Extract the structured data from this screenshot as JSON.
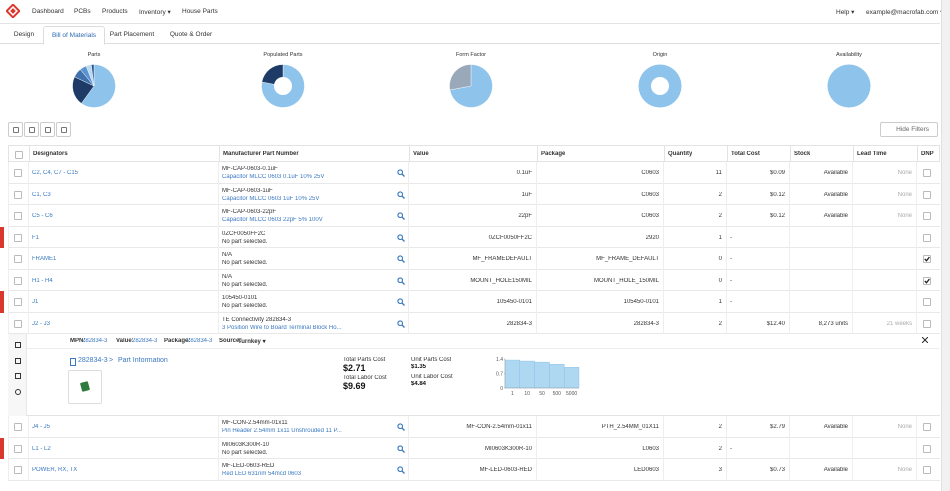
{
  "nav": {
    "links": [
      "Dashboard",
      "PCBs",
      "Products",
      "Inventory ▾",
      "House Parts"
    ],
    "right": [
      "Help ▾",
      "example@macrofab.com ▾"
    ]
  },
  "tabs": {
    "items": [
      "Design",
      "Bill of Materials",
      "Part Placement",
      "Quote & Order"
    ],
    "active": 1
  },
  "pies": [
    {
      "type": "pie",
      "title": "Parts",
      "donut": false,
      "values": [
        60,
        22,
        7,
        5,
        4,
        2
      ],
      "colors": [
        "#8ec3ec",
        "#1e3a66",
        "#3f72ad",
        "#5b93d1",
        "#b9d9f3",
        "#2a5590"
      ]
    },
    {
      "type": "pie",
      "title": "Populated Parts",
      "donut": true,
      "values": [
        78,
        22
      ],
      "colors": [
        "#8ec3ec",
        "#1e3a66"
      ]
    },
    {
      "type": "pie",
      "title": "Form Factor",
      "donut": false,
      "values": [
        72,
        28
      ],
      "colors": [
        "#8ec3ec",
        "#9aa9ba"
      ]
    },
    {
      "type": "pie",
      "title": "Origin",
      "donut": true,
      "values": [
        100
      ],
      "colors": [
        "#8ec3ec"
      ]
    },
    {
      "type": "pie",
      "title": "Availability",
      "donut": false,
      "values": [
        100
      ],
      "colors": [
        "#8ec3ec"
      ]
    }
  ],
  "toolbar": {
    "hide_filters": "Hide Filters"
  },
  "table": {
    "columns": [
      "Designators",
      "Manufacturer Part Number",
      "Value",
      "Package",
      "Quantity",
      "Total Cost",
      "Stock",
      "Lead Time",
      "DNP"
    ],
    "rows": [
      {
        "designators": "C2, C4, C7 - C15",
        "mpn": "MF-CAP-0603-0.1uF",
        "description": "Capacitor MLCC 0603 0.1uF 10% 25V",
        "selected": true,
        "value": "0.1uF",
        "package": "C0603",
        "quantity": 11,
        "total_cost": "$0.09",
        "stock": "Available",
        "lead_time": "None",
        "dnp": false,
        "flag": false
      },
      {
        "designators": "C1, C3",
        "mpn": "MF-CAP-0603-1uF",
        "description": "Capacitor MLCC 0603 1uF 10% 25V",
        "selected": true,
        "value": "1uF",
        "package": "C0603",
        "quantity": 2,
        "total_cost": "$0.12",
        "stock": "Available",
        "lead_time": "None",
        "dnp": false,
        "flag": false
      },
      {
        "designators": "C5 - C6",
        "mpn": "MF-CAP-0603-22pF",
        "description": "Capacitor MLCC 0603 22pF 5% 100V",
        "selected": true,
        "value": "22pF",
        "package": "C0603",
        "quantity": 2,
        "total_cost": "$0.12",
        "stock": "Available",
        "lead_time": "None",
        "dnp": false,
        "flag": false
      },
      {
        "designators": "F1",
        "mpn": "0ZCF0050FF2C",
        "description": "No part selected.",
        "selected": false,
        "value": "0ZCF0050FF2C",
        "package": "2920",
        "quantity": 1,
        "total_cost": "-",
        "dnp": false,
        "flag": true
      },
      {
        "designators": "FRAME1",
        "mpn": "N/A",
        "description": "No part selected.",
        "selected": false,
        "value": "MF_FRAMEDEFAULT",
        "package": "MF_FRAME_DEFAULT",
        "quantity": 0,
        "total_cost": "-",
        "dnp": true,
        "flag": false
      },
      {
        "designators": "H1 - H4",
        "mpn": "N/A",
        "description": "No part selected.",
        "selected": false,
        "value": "MOUNT_HOLE150MIL",
        "package": "MOUNT_HOLE_150MIL",
        "quantity": 0,
        "total_cost": "-",
        "dnp": true,
        "flag": false
      },
      {
        "designators": "J1",
        "mpn": "105450-0101",
        "description": "No part selected.",
        "selected": false,
        "value": "105450-0101",
        "package": "105450-0101",
        "quantity": 1,
        "total_cost": "-",
        "dnp": false,
        "flag": true
      },
      {
        "designators": "J2 - J3",
        "mpn": "TE Connectivity 282834-3",
        "description": "3 Position Wire to Board Terminal Block Ho...",
        "selected": true,
        "value": "282834-3",
        "package": "282834-3",
        "quantity": 2,
        "total_cost": "$12.40",
        "stock": "8,273 units",
        "lead_time": "21 weeks",
        "dnp": false,
        "flag": false,
        "detail": {
          "mpn_label": "MPN:",
          "mpn": "282834-3",
          "value_label": "Value:",
          "value": "282834-3",
          "package_label": "Package:",
          "package": "282834-3",
          "source_label": "Source:",
          "source": "Turnkey ▾",
          "part_number": "282834-3",
          "breadcrumb_sep": ">",
          "part_info": "Part Information",
          "total_parts_cost_label": "Total Parts Cost",
          "total_parts_cost": "$2.71",
          "total_labor_cost_label": "Total Labor Cost",
          "total_labor_cost": "$9.69",
          "unit_parts_cost_label": "Unit Parts Cost",
          "unit_parts_cost": "$1.35",
          "unit_labor_cost_label": "Unit Labor Cost",
          "unit_labor_cost": "$4.84",
          "chart": {
            "type": "area",
            "categories": [
              "1",
              "10",
              "50",
              "500",
              "5000"
            ],
            "values": [
              1.35,
              1.3,
              1.25,
              1.15,
              1.0
            ],
            "ylim": [
              0,
              1.4
            ],
            "yticks": [
              0,
              0.7,
              1.4
            ],
            "color": "#aed8f2"
          }
        }
      },
      {
        "designators": "J4 - J5",
        "mpn": "MF-CON-2.54mm-01x11",
        "description": "Pin Header 2.54mm 1x11 Unshrouded 11 P...",
        "selected": true,
        "value": "MF-CON-2.54mm-01x11",
        "package": "PTH_2.54MM_01X11",
        "quantity": 2,
        "total_cost": "$2.79",
        "stock": "Available",
        "lead_time": "None",
        "dnp": false,
        "flag": false
      },
      {
        "designators": "L1 - L2",
        "mpn": "MI0603K300R-10",
        "description": "No part selected.",
        "selected": false,
        "value": "MI0603K300R-10",
        "package": "L0603",
        "quantity": 2,
        "total_cost": "-",
        "dnp": false,
        "flag": true
      },
      {
        "designators": "POWER, RX, TX",
        "mpn": "MF-LED-0603-RED",
        "description": "Red LED 631nm 54mcd 0603",
        "selected": true,
        "value": "MF-LED-0603-RED",
        "package": "LED0603",
        "quantity": 3,
        "total_cost": "$0.73",
        "stock": "Available",
        "lead_time": "None",
        "dnp": false,
        "flag": false
      }
    ]
  }
}
